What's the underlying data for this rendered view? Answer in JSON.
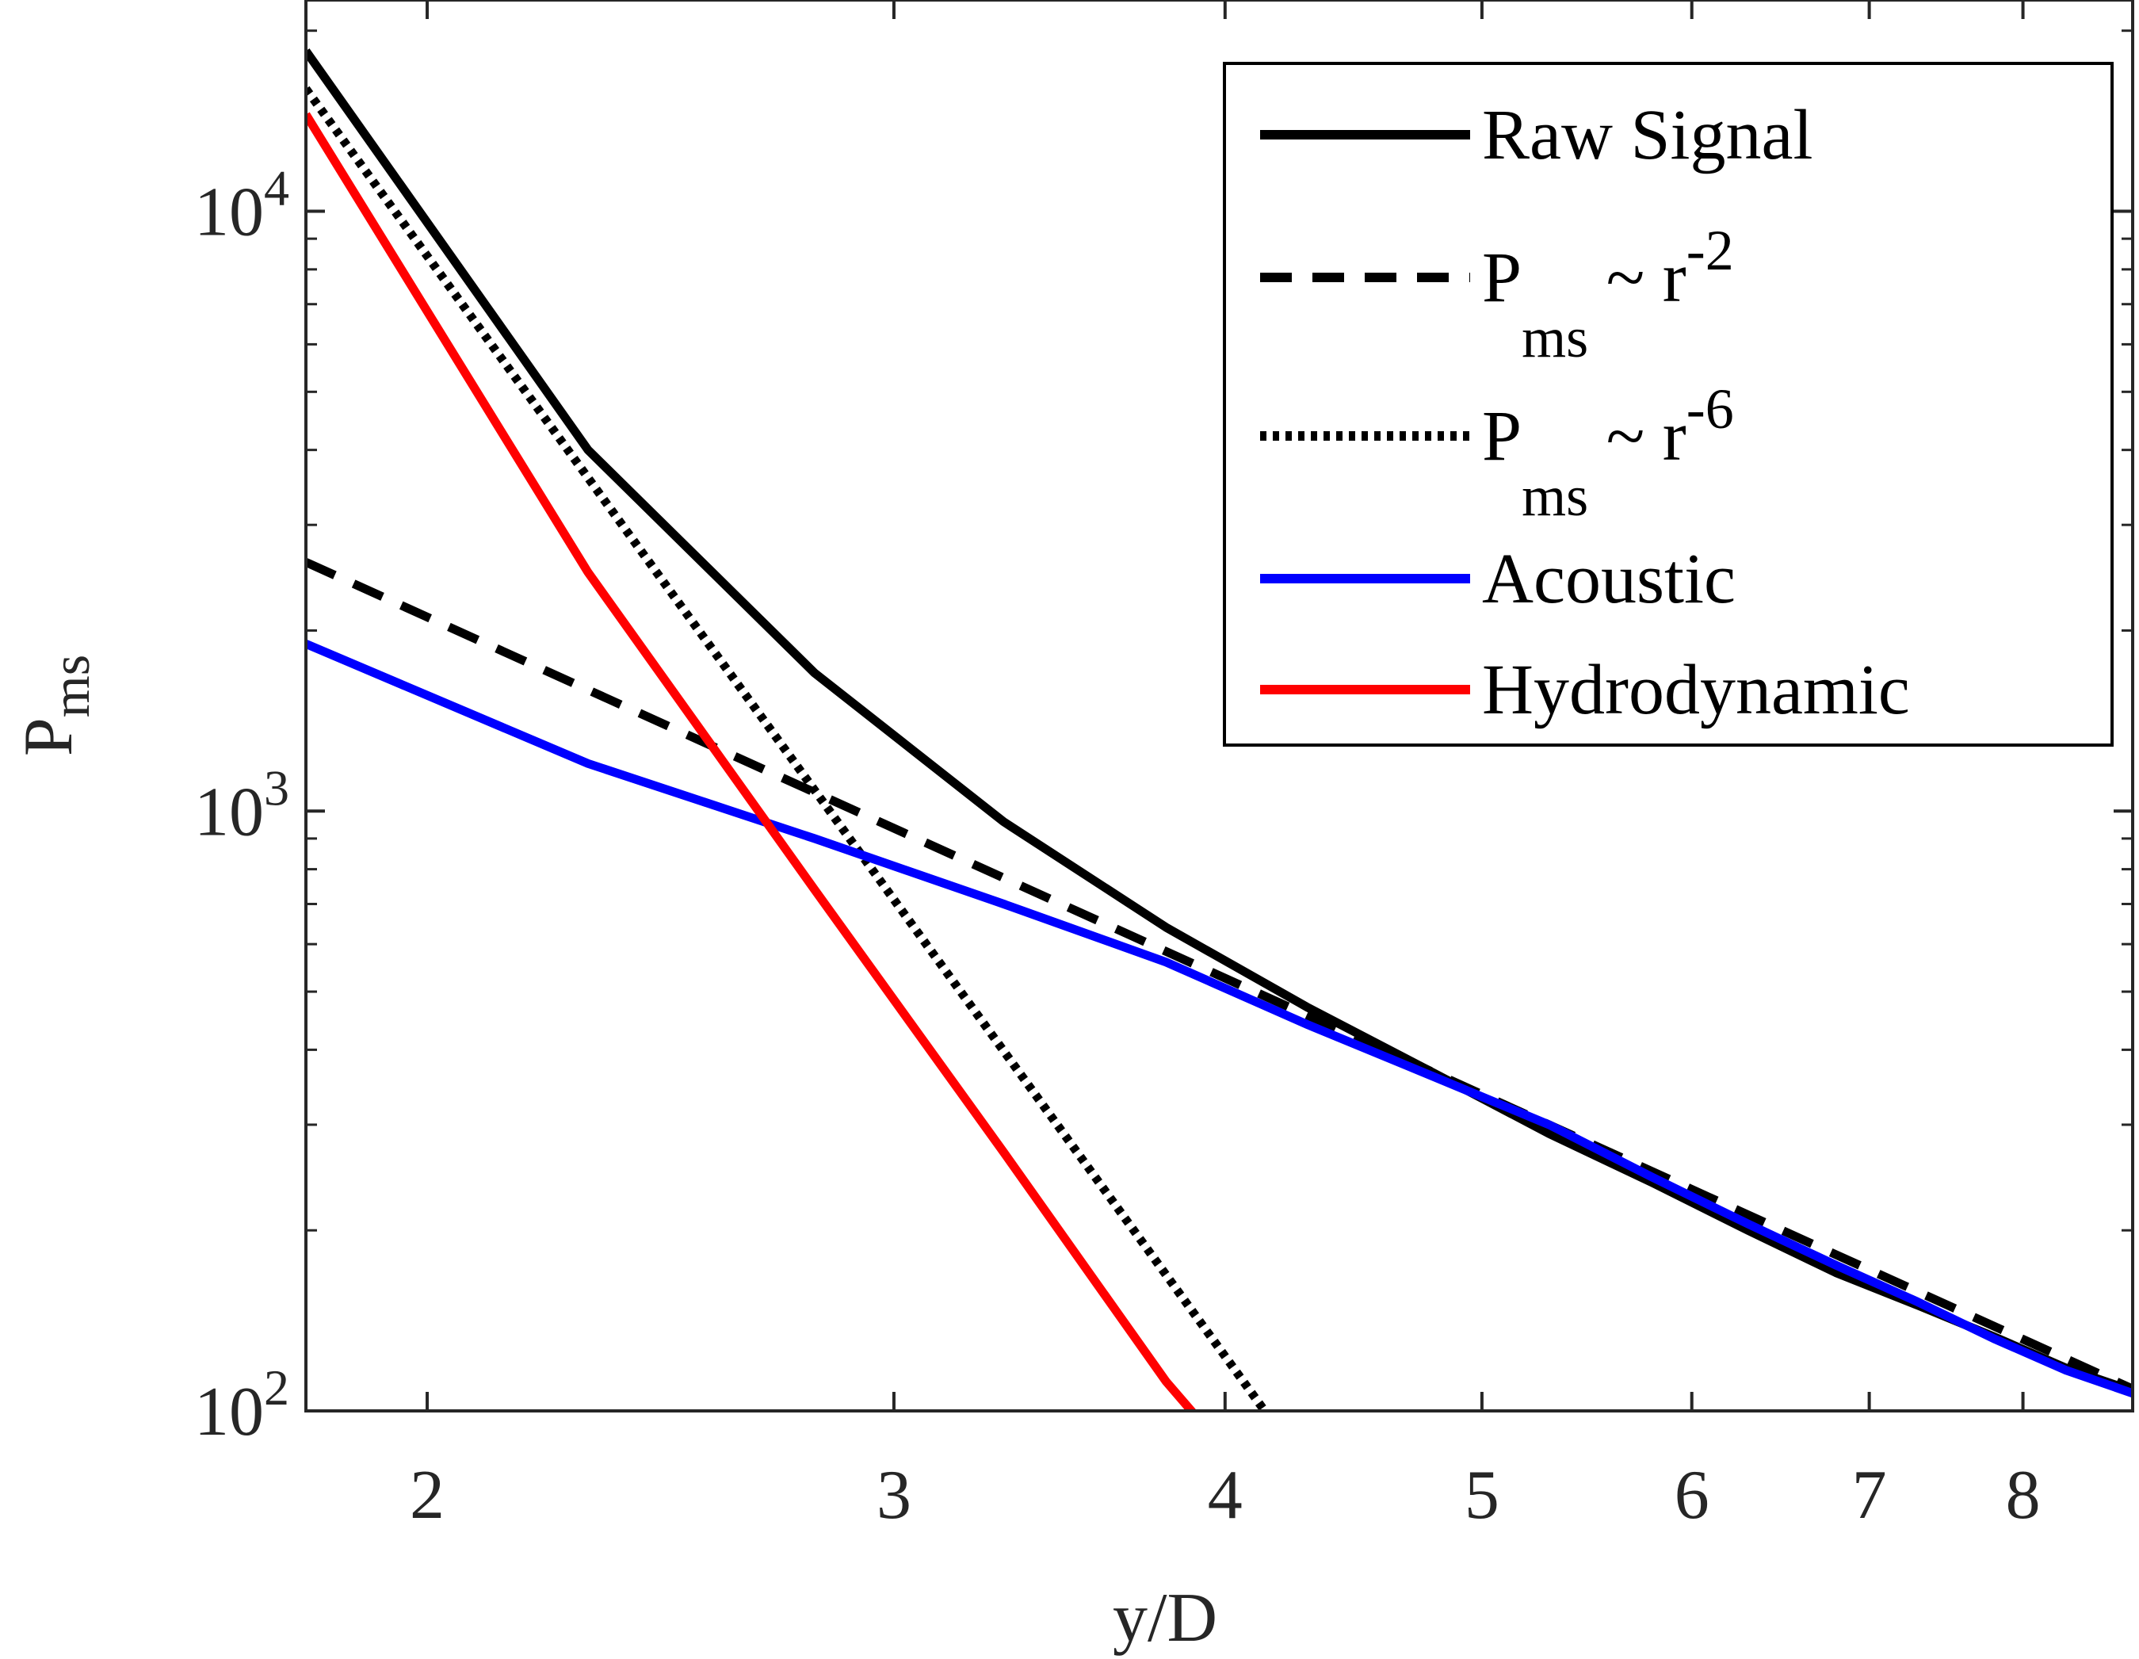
{
  "chart_data": {
    "type": "line",
    "title": "",
    "xlabel": "y/D",
    "ylabel": {
      "main": "P",
      "sub": "ms"
    },
    "x_scale": "log",
    "y_scale": "log",
    "xlim": [
      1.8,
      8.8
    ],
    "ylim": [
      100,
      22500
    ],
    "x_ticks": [
      2,
      3,
      4,
      5,
      6,
      7,
      8
    ],
    "y_ticks": [
      {
        "value": 100,
        "base": "10",
        "exp": "2"
      },
      {
        "value": 1000,
        "base": "10",
        "exp": "3"
      },
      {
        "value": 10000,
        "base": "10",
        "exp": "4"
      }
    ],
    "grid": false,
    "legend_position": "top-right",
    "series": [
      {
        "key": "raw",
        "legend": {
          "main": "Raw Signal",
          "sub": "",
          "tail": "",
          "sup": ""
        },
        "color": "#000000",
        "style": "solid",
        "x": [
          1.8,
          2.3,
          2.8,
          3.3,
          3.8,
          4.3,
          4.8,
          5.3,
          5.8,
          6.3,
          6.8,
          7.3,
          7.8,
          8.3,
          8.8
        ],
        "y": [
          18500,
          4000,
          1700,
          960,
          640,
          470,
          365,
          290,
          240,
          200,
          170,
          150,
          133,
          118,
          108
        ]
      },
      {
        "key": "r2",
        "legend": {
          "main": "P",
          "sub": "ms",
          "tail": " ~ r",
          "sup": "-2"
        },
        "color": "#000000",
        "style": "dashed",
        "x": [
          1.8,
          8.8
        ],
        "y": [
          2600,
          108.8
        ]
      },
      {
        "key": "r6",
        "legend": {
          "main": "P",
          "sub": "ms",
          "tail": " ~ r",
          "sup": "-6"
        },
        "color": "#000000",
        "style": "dotted",
        "x": [
          1.8,
          4.14
        ],
        "y": [
          16000,
          100
        ]
      },
      {
        "key": "acoustic",
        "legend": {
          "main": "Acoustic",
          "sub": "",
          "tail": "",
          "sup": ""
        },
        "color": "#0000ff",
        "style": "solid",
        "x": [
          1.8,
          2.3,
          2.8,
          3.3,
          3.8,
          4.3,
          4.8,
          5.3,
          5.8,
          6.3,
          6.8,
          7.3,
          7.8,
          8.3,
          8.8
        ],
        "y": [
          1900,
          1200,
          900,
          700,
          560,
          440,
          360,
          300,
          245,
          205,
          175,
          152,
          132,
          117,
          107
        ]
      },
      {
        "key": "hydro",
        "legend": {
          "main": "Hydrodynamic",
          "sub": "",
          "tail": "",
          "sup": ""
        },
        "color": "#ff0000",
        "style": "solid",
        "x": [
          1.8,
          2.3,
          2.8,
          3.3,
          3.8,
          3.9
        ],
        "y": [
          14500,
          2500,
          740,
          270,
          112,
          98
        ]
      }
    ]
  }
}
